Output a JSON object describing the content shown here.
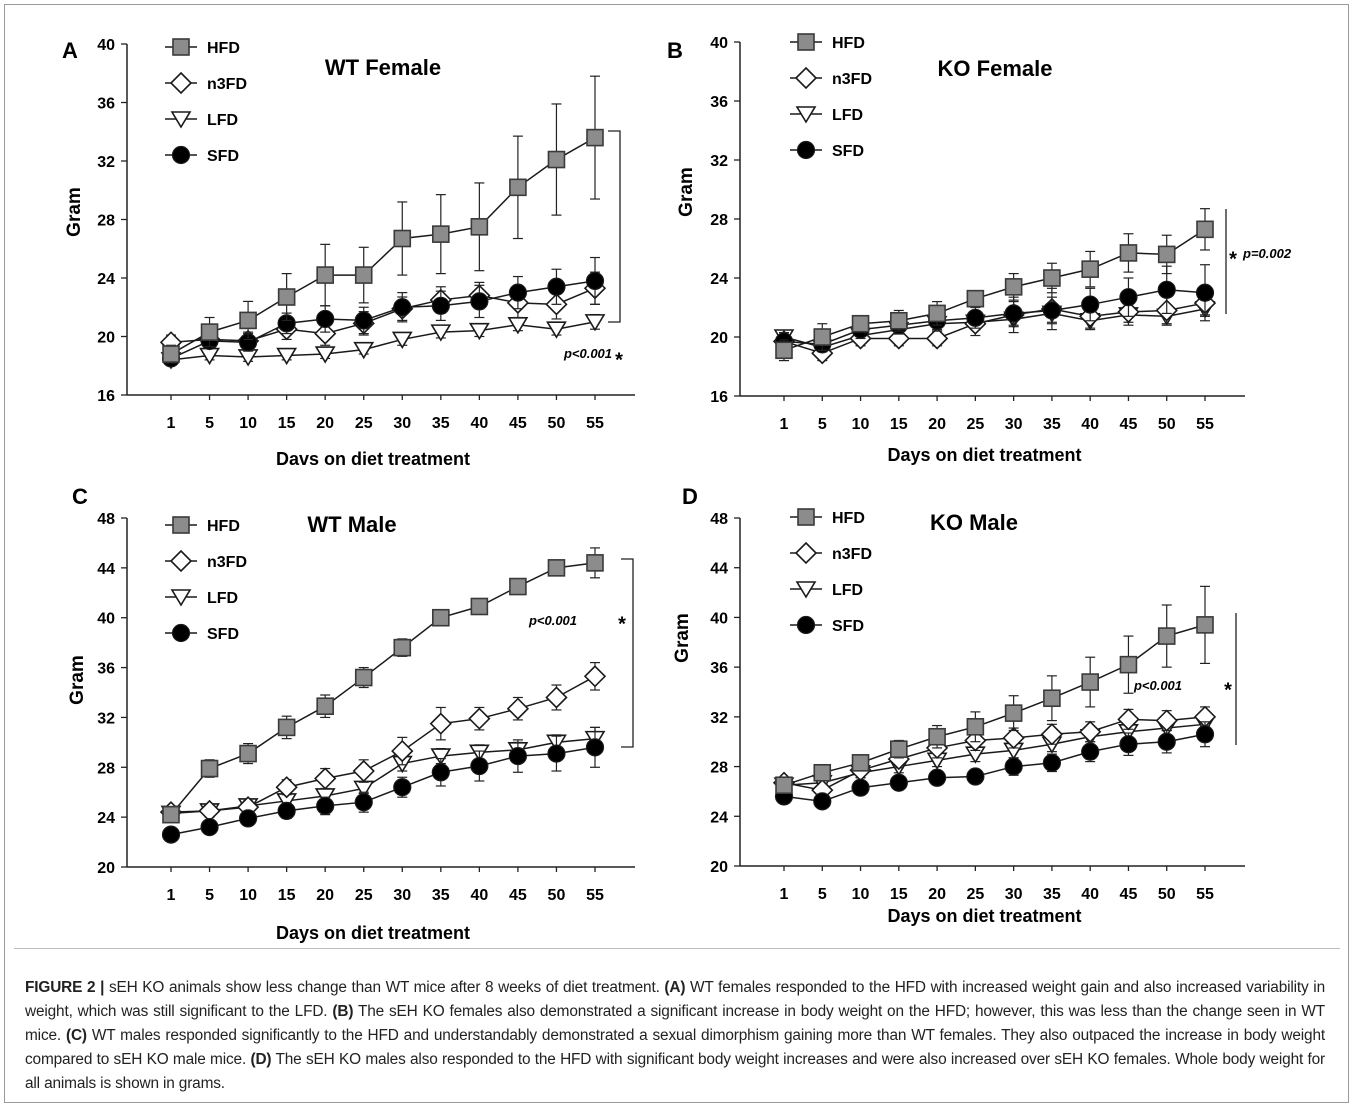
{
  "chart_data": [
    {
      "type": "line",
      "panel_letter": "A",
      "title": "WT Female",
      "xlabel": "Davs on diet treatment",
      "ylabel": "Gram",
      "categories": [
        "1",
        "5",
        "10",
        "15",
        "20",
        "25",
        "30",
        "35",
        "40",
        "45",
        "50",
        "55"
      ],
      "ylim": [
        16,
        40
      ],
      "yticks": [
        16,
        20,
        24,
        28,
        32,
        36,
        40
      ],
      "legend_position": "top-left",
      "series": [
        {
          "name": "HFD",
          "values": [
            18.8,
            20.3,
            21.1,
            22.7,
            24.2,
            24.2,
            26.7,
            27.0,
            27.5,
            30.2,
            32.1,
            33.6
          ],
          "errors": [
            0.6,
            1.0,
            1.3,
            1.6,
            2.1,
            1.9,
            2.5,
            2.7,
            3.0,
            3.5,
            3.8,
            4.2
          ]
        },
        {
          "name": "n3FD",
          "values": [
            19.6,
            19.8,
            19.7,
            20.5,
            20.2,
            20.9,
            21.9,
            22.5,
            22.8,
            22.3,
            22.2,
            23.3
          ],
          "errors": [
            0.5,
            0.6,
            0.6,
            0.7,
            0.8,
            0.8,
            0.8,
            0.9,
            0.9,
            1.0,
            1.0,
            1.1
          ]
        },
        {
          "name": "LFD",
          "values": [
            18.4,
            18.7,
            18.6,
            18.7,
            18.8,
            19.1,
            19.8,
            20.3,
            20.4,
            20.8,
            20.5,
            21.0
          ],
          "errors": [
            0.3,
            0.3,
            0.3,
            0.3,
            0.3,
            0.3,
            0.4,
            0.4,
            0.4,
            0.4,
            0.4,
            0.5
          ]
        },
        {
          "name": "SFD",
          "values": [
            18.5,
            19.7,
            19.6,
            20.9,
            21.2,
            21.1,
            22.0,
            22.1,
            22.4,
            23.0,
            23.4,
            23.8
          ],
          "errors": [
            0.4,
            0.5,
            0.6,
            0.7,
            0.9,
            0.9,
            1.0,
            1.0,
            1.1,
            1.1,
            1.2,
            1.6
          ]
        }
      ],
      "annotation": "p<0.001",
      "star": "*"
    },
    {
      "type": "line",
      "panel_letter": "B",
      "title": "KO Female",
      "xlabel": "Days on diet treatment",
      "ylabel": "Gram",
      "categories": [
        "1",
        "5",
        "10",
        "15",
        "20",
        "25",
        "30",
        "35",
        "40",
        "45",
        "50",
        "55"
      ],
      "ylim": [
        16,
        40
      ],
      "yticks": [
        16,
        20,
        24,
        28,
        32,
        36,
        40
      ],
      "legend_position": "top-left",
      "series": [
        {
          "name": "HFD",
          "values": [
            19.1,
            20.0,
            20.9,
            21.1,
            21.6,
            22.6,
            23.4,
            24.0,
            24.6,
            25.7,
            25.6,
            27.3
          ],
          "errors": [
            0.7,
            0.9,
            0.5,
            0.7,
            0.8,
            0.5,
            0.9,
            1.0,
            1.2,
            1.3,
            1.3,
            1.4
          ]
        },
        {
          "name": "n3FD",
          "values": [
            19.7,
            18.9,
            19.9,
            19.9,
            19.9,
            20.9,
            21.5,
            21.9,
            21.4,
            21.7,
            21.8,
            22.3
          ],
          "errors": [
            0.6,
            0.5,
            0.5,
            0.5,
            0.5,
            0.8,
            1.2,
            1.4,
            0.9,
            0.9,
            1.0,
            0.8
          ]
        },
        {
          "name": "LFD",
          "values": [
            20.0,
            19.3,
            20.1,
            20.5,
            20.9,
            21.0,
            21.2,
            21.6,
            21.1,
            21.5,
            21.4,
            21.9
          ],
          "errors": [
            0.4,
            0.4,
            0.4,
            0.4,
            0.4,
            0.5,
            0.5,
            0.6,
            0.5,
            0.5,
            0.5,
            0.5
          ]
        },
        {
          "name": "SFD",
          "values": [
            19.7,
            19.5,
            20.5,
            20.8,
            21.1,
            21.3,
            21.6,
            21.8,
            22.2,
            22.7,
            23.2,
            23.0
          ],
          "errors": [
            0.5,
            0.5,
            0.6,
            0.6,
            0.7,
            0.7,
            0.8,
            0.9,
            1.1,
            1.3,
            1.6,
            1.9
          ]
        }
      ],
      "annotation": "p=0.002",
      "star": "*"
    },
    {
      "type": "line",
      "panel_letter": "C",
      "title": "WT Male",
      "xlabel": "Days on diet treatment",
      "ylabel": "Gram",
      "categories": [
        "1",
        "5",
        "10",
        "15",
        "20",
        "25",
        "30",
        "35",
        "40",
        "45",
        "50",
        "55"
      ],
      "ylim": [
        20,
        48
      ],
      "yticks": [
        20,
        24,
        28,
        32,
        36,
        40,
        44,
        48
      ],
      "legend_position": "top-left",
      "series": [
        {
          "name": "HFD",
          "values": [
            24.2,
            27.9,
            29.1,
            31.2,
            32.9,
            35.2,
            37.6,
            40.0,
            40.9,
            42.5,
            44.0,
            44.4
          ],
          "errors": [
            0.5,
            0.7,
            0.8,
            0.9,
            0.9,
            0.8,
            0.7,
            0.6,
            0.5,
            0.5,
            0.5,
            1.2
          ]
        },
        {
          "name": "n3FD",
          "values": [
            24.4,
            24.5,
            24.8,
            26.4,
            27.1,
            27.7,
            29.3,
            31.5,
            31.9,
            32.7,
            33.6,
            35.3
          ],
          "errors": [
            0.4,
            0.5,
            0.5,
            0.6,
            0.8,
            0.9,
            1.1,
            1.3,
            0.9,
            0.9,
            1.0,
            1.1
          ]
        },
        {
          "name": "LFD",
          "values": [
            24.3,
            24.5,
            24.9,
            25.3,
            25.7,
            26.3,
            28.3,
            28.9,
            29.2,
            29.4,
            30.0,
            30.3
          ],
          "errors": [
            0.3,
            0.3,
            0.4,
            0.4,
            0.4,
            0.4,
            0.6,
            0.6,
            0.6,
            0.6,
            0.6,
            0.9
          ]
        },
        {
          "name": "SFD",
          "values": [
            22.6,
            23.2,
            23.9,
            24.5,
            24.9,
            25.2,
            26.4,
            27.6,
            28.1,
            28.9,
            29.1,
            29.6
          ],
          "errors": [
            0.4,
            0.4,
            0.5,
            0.6,
            0.7,
            0.8,
            0.8,
            1.1,
            1.2,
            1.3,
            1.4,
            1.6
          ]
        }
      ],
      "annotation": "p<0.001",
      "star": "*"
    },
    {
      "type": "line",
      "panel_letter": "D",
      "title": "KO Male",
      "xlabel": "Days on diet treatment",
      "ylabel": "Gram",
      "categories": [
        "1",
        "5",
        "10",
        "15",
        "20",
        "25",
        "30",
        "35",
        "40",
        "45",
        "50",
        "55"
      ],
      "ylim": [
        20,
        48
      ],
      "yticks": [
        20,
        24,
        28,
        32,
        36,
        40,
        44,
        48
      ],
      "legend_position": "top-left",
      "series": [
        {
          "name": "HFD",
          "values": [
            26.5,
            27.5,
            28.3,
            29.4,
            30.4,
            31.2,
            32.3,
            33.5,
            34.8,
            36.2,
            38.5,
            39.4
          ],
          "errors": [
            0.4,
            0.5,
            0.6,
            0.7,
            0.9,
            1.2,
            1.4,
            1.8,
            2.0,
            2.3,
            2.5,
            3.1
          ]
        },
        {
          "name": "n3FD",
          "values": [
            26.7,
            26.1,
            27.7,
            28.6,
            29.5,
            30.1,
            30.3,
            30.6,
            30.8,
            31.8,
            31.7,
            32.0
          ],
          "errors": [
            0.4,
            0.5,
            0.6,
            0.7,
            0.8,
            0.8,
            0.8,
            0.8,
            0.8,
            0.8,
            0.8,
            0.8
          ]
        },
        {
          "name": "LFD",
          "values": [
            26.5,
            26.7,
            27.5,
            28.0,
            28.5,
            29.0,
            29.3,
            29.8,
            30.4,
            30.8,
            31.1,
            31.4
          ],
          "errors": [
            0.3,
            0.4,
            0.4,
            0.5,
            0.5,
            0.6,
            0.6,
            0.6,
            0.7,
            0.7,
            0.7,
            0.8
          ]
        },
        {
          "name": "SFD",
          "values": [
            25.6,
            25.2,
            26.3,
            26.7,
            27.1,
            27.2,
            28.0,
            28.3,
            29.2,
            29.8,
            30.0,
            30.6
          ],
          "errors": [
            0.4,
            0.4,
            0.5,
            0.5,
            0.5,
            0.5,
            0.7,
            0.7,
            0.8,
            0.9,
            0.9,
            1.0
          ]
        }
      ],
      "annotation": "p<0.001",
      "star": "*"
    }
  ],
  "colors": {
    "HFD": "#8c8c8c",
    "n3FD": "#ffffff",
    "LFD": "#ffffff",
    "SFD": "#000000"
  },
  "caption": {
    "label": "FIGURE 2 |",
    "intro": " sEH KO animals show less change than WT mice after 8 weeks of diet treatment. ",
    "a_tag": "(A)",
    "a_text": " WT females responded to the HFD with increased weight gain and also increased variability in weight, which was still significant to the LFD. ",
    "b_tag": "(B)",
    "b_text": " The sEH KO females also demonstrated a significant increase in body weight on the HFD; however, this was less than the change seen in WT mice. ",
    "c_tag": "(C)",
    "c_text": " WT males responded significantly to the HFD and understandably demonstrated a sexual dimorphism gaining more than WT females. They also outpaced the increase in body weight compared to sEH KO male mice. ",
    "d_tag": "(D)",
    "d_text": " The sEH KO males also responded to the HFD with significant body weight increases and were also increased over sEH KO females. Whole body weight for all animals is shown in grams."
  }
}
